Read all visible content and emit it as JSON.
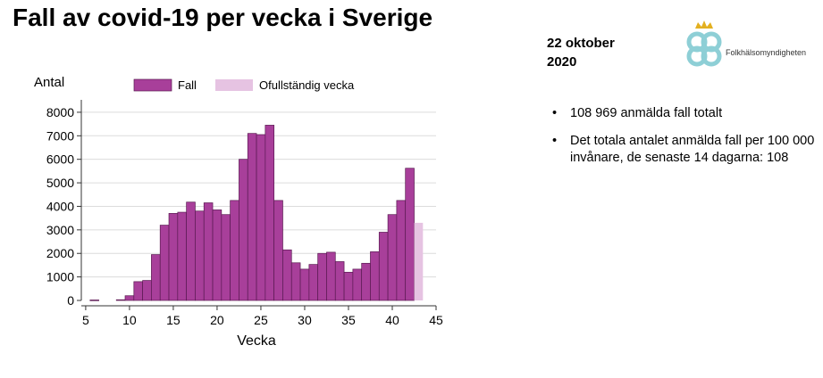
{
  "title": "Fall av covid-19 per vecka i Sverige",
  "date_line1": "22 oktober",
  "date_line2": "2020",
  "logo_text": "Folkhälsomyndigheten",
  "bullets": [
    "108 969 anmälda fall totalt",
    "Det totala antalet anmälda fall per 100 000 invånare, de senaste 14 dagarna: 108"
  ],
  "colors": {
    "bar": "#a83f9a",
    "bar_outline": "#5a1a52",
    "incomplete": "#e6c3e2",
    "logo": "#8ecfd6",
    "crown": "#e3b020"
  },
  "chart_data": {
    "type": "bar",
    "xlabel": "Vecka",
    "ylabel": "Antal",
    "xlim": [
      4.5,
      45
    ],
    "ylim": [
      0,
      8300
    ],
    "xticks": [
      5,
      10,
      15,
      20,
      25,
      30,
      35,
      40,
      45
    ],
    "yticks": [
      0,
      1000,
      2000,
      3000,
      4000,
      5000,
      6000,
      7000,
      8000
    ],
    "grid": true,
    "legend_position": "top",
    "series": [
      {
        "name": "Fall",
        "x": [
          6,
          9,
          10,
          11,
          12,
          13,
          14,
          15,
          16,
          17,
          18,
          19,
          20,
          21,
          22,
          23,
          24,
          25,
          26,
          27,
          28,
          29,
          30,
          31,
          32,
          33,
          34,
          35,
          36,
          37,
          38,
          39,
          40,
          41,
          42
        ],
        "values": [
          20,
          30,
          200,
          800,
          850,
          1950,
          3200,
          3700,
          3750,
          4180,
          3800,
          4150,
          3850,
          3650,
          4250,
          6000,
          7100,
          7050,
          7450,
          4250,
          2150,
          1600,
          1330,
          1530,
          2000,
          2050,
          1650,
          1200,
          1330,
          1580,
          2070,
          2900,
          3650,
          4250,
          5620
        ]
      },
      {
        "name": "Ofullständig vecka",
        "x": [
          43
        ],
        "values": [
          3300
        ]
      }
    ]
  }
}
